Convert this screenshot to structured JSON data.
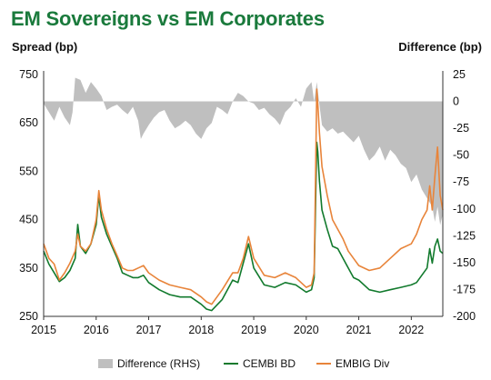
{
  "chart_data": {
    "type": "line",
    "title": "EM Sovereigns vs EM Corporates",
    "ylabel": "Spread (bp)",
    "y2label": "Difference (bp)",
    "ylim": [
      250,
      750
    ],
    "y2lim": [
      -200,
      25
    ],
    "yticks": [
      250,
      350,
      450,
      550,
      650,
      750
    ],
    "y2ticks": [
      25,
      0,
      -25,
      -50,
      -75,
      -100,
      -125,
      -150,
      -175,
      -200
    ],
    "xlim": [
      2015.0,
      2022.6
    ],
    "xticks": [
      "2015",
      "2016",
      "2017",
      "2018",
      "2019",
      "2020",
      "2021",
      "2022"
    ],
    "legend_position": "bottom",
    "series": [
      {
        "name": "Difference (RHS)",
        "axis": "right",
        "style": "area",
        "color": "#bfbfbf",
        "x": [
          2015.0,
          2015.1,
          2015.2,
          2015.3,
          2015.4,
          2015.5,
          2015.55,
          2015.6,
          2015.7,
          2015.8,
          2015.9,
          2016.0,
          2016.1,
          2016.2,
          2016.3,
          2016.4,
          2016.5,
          2016.6,
          2016.7,
          2016.8,
          2016.85,
          2016.9,
          2017.0,
          2017.1,
          2017.2,
          2017.3,
          2017.4,
          2017.5,
          2017.6,
          2017.7,
          2017.8,
          2017.9,
          2018.0,
          2018.1,
          2018.2,
          2018.3,
          2018.4,
          2018.5,
          2018.6,
          2018.7,
          2018.8,
          2018.9,
          2019.0,
          2019.1,
          2019.2,
          2019.3,
          2019.4,
          2019.5,
          2019.6,
          2019.7,
          2019.8,
          2019.9,
          2020.0,
          2020.1,
          2020.15,
          2020.2,
          2020.25,
          2020.3,
          2020.4,
          2020.5,
          2020.6,
          2020.7,
          2020.8,
          2020.9,
          2021.0,
          2021.1,
          2021.2,
          2021.3,
          2021.4,
          2021.5,
          2021.6,
          2021.7,
          2021.8,
          2021.9,
          2022.0,
          2022.1,
          2022.2,
          2022.3,
          2022.4,
          2022.45,
          2022.5,
          2022.55,
          2022.6
        ],
        "values": [
          -2,
          -10,
          -18,
          -5,
          -15,
          -22,
          -10,
          22,
          20,
          8,
          18,
          12,
          5,
          -8,
          -5,
          -3,
          -8,
          -12,
          -5,
          -18,
          -35,
          -30,
          -22,
          -15,
          -10,
          -8,
          -18,
          -25,
          -22,
          -18,
          -22,
          -30,
          -35,
          -25,
          -20,
          -5,
          -8,
          -12,
          0,
          8,
          5,
          0,
          -2,
          -8,
          -6,
          -12,
          -16,
          -22,
          -10,
          -5,
          3,
          -5,
          12,
          18,
          0,
          18,
          -3,
          -22,
          -28,
          -25,
          -30,
          -28,
          -33,
          -38,
          -32,
          -45,
          -55,
          -50,
          -42,
          -55,
          -45,
          -50,
          -58,
          -62,
          -75,
          -68,
          -82,
          -90,
          -98,
          -112,
          -98,
          -115,
          -105
        ]
      },
      {
        "name": "CEMBI BD",
        "axis": "left",
        "style": "line",
        "color": "#127a2d",
        "x": [
          2015.0,
          2015.1,
          2015.2,
          2015.3,
          2015.4,
          2015.5,
          2015.6,
          2015.65,
          2015.7,
          2015.8,
          2015.9,
          2016.0,
          2016.05,
          2016.1,
          2016.2,
          2016.3,
          2016.4,
          2016.5,
          2016.6,
          2016.7,
          2016.8,
          2016.9,
          2017.0,
          2017.2,
          2017.4,
          2017.6,
          2017.8,
          2018.0,
          2018.1,
          2018.2,
          2018.4,
          2018.6,
          2018.7,
          2018.8,
          2018.9,
          2019.0,
          2019.2,
          2019.4,
          2019.6,
          2019.8,
          2020.0,
          2020.1,
          2020.15,
          2020.2,
          2020.22,
          2020.25,
          2020.3,
          2020.4,
          2020.5,
          2020.6,
          2020.7,
          2020.8,
          2020.9,
          2021.0,
          2021.2,
          2021.4,
          2021.6,
          2021.8,
          2022.0,
          2022.1,
          2022.2,
          2022.3,
          2022.35,
          2022.4,
          2022.45,
          2022.5,
          2022.55,
          2022.6
        ],
        "values": [
          385,
          358,
          340,
          322,
          330,
          345,
          370,
          440,
          395,
          380,
          400,
          440,
          500,
          455,
          420,
          395,
          370,
          340,
          335,
          330,
          330,
          335,
          320,
          305,
          295,
          290,
          290,
          275,
          265,
          262,
          285,
          325,
          320,
          360,
          400,
          350,
          315,
          310,
          320,
          315,
          300,
          305,
          330,
          610,
          590,
          530,
          470,
          430,
          395,
          390,
          370,
          350,
          330,
          325,
          305,
          300,
          305,
          310,
          315,
          320,
          335,
          350,
          390,
          360,
          395,
          410,
          385,
          380
        ]
      },
      {
        "name": "EMBIG Div",
        "axis": "left",
        "style": "line",
        "color": "#e8843a",
        "x": [
          2015.0,
          2015.1,
          2015.2,
          2015.3,
          2015.4,
          2015.5,
          2015.6,
          2015.65,
          2015.7,
          2015.8,
          2015.9,
          2016.0,
          2016.05,
          2016.1,
          2016.2,
          2016.3,
          2016.4,
          2016.5,
          2016.6,
          2016.7,
          2016.8,
          2016.9,
          2017.0,
          2017.2,
          2017.4,
          2017.6,
          2017.8,
          2018.0,
          2018.1,
          2018.2,
          2018.4,
          2018.6,
          2018.7,
          2018.8,
          2018.9,
          2019.0,
          2019.2,
          2019.4,
          2019.6,
          2019.8,
          2020.0,
          2020.1,
          2020.15,
          2020.2,
          2020.22,
          2020.25,
          2020.3,
          2020.4,
          2020.5,
          2020.6,
          2020.7,
          2020.8,
          2020.9,
          2021.0,
          2021.2,
          2021.4,
          2021.6,
          2021.8,
          2022.0,
          2022.1,
          2022.2,
          2022.3,
          2022.35,
          2022.4,
          2022.45,
          2022.5,
          2022.55,
          2022.6
        ],
        "values": [
          400,
          370,
          358,
          325,
          340,
          360,
          385,
          420,
          395,
          385,
          400,
          450,
          510,
          470,
          430,
          400,
          375,
          350,
          345,
          345,
          350,
          355,
          340,
          325,
          315,
          310,
          305,
          290,
          280,
          275,
          305,
          340,
          340,
          370,
          415,
          370,
          335,
          330,
          340,
          330,
          310,
          315,
          340,
          720,
          690,
          630,
          560,
          500,
          450,
          430,
          410,
          385,
          370,
          355,
          345,
          350,
          370,
          390,
          400,
          420,
          450,
          470,
          520,
          470,
          540,
          600,
          500,
          470
        ]
      }
    ]
  }
}
